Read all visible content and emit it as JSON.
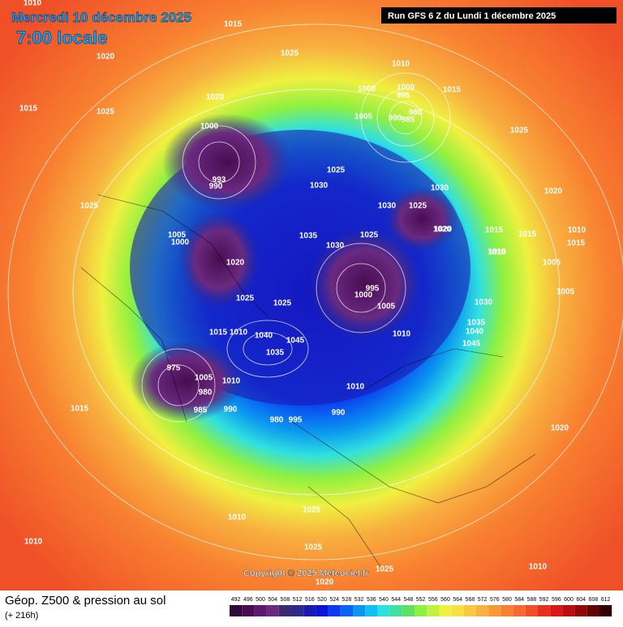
{
  "header": {
    "date": "Mercredi 10 décembre 2025",
    "time": "7:00 locale",
    "run": "Run GFS 6 Z du Lundi 1 décembre 2025"
  },
  "footer": {
    "title": "Géop. Z500 & pression au sol",
    "lead": "(+ 216h)",
    "copyright": "Copyright © 2025 Meteociel.fr"
  },
  "scale": {
    "levels": [
      492,
      496,
      500,
      504,
      508,
      512,
      516,
      520,
      524,
      528,
      532,
      536,
      540,
      544,
      548,
      552,
      556,
      560,
      564,
      568,
      572,
      576,
      580,
      584,
      588,
      592,
      596,
      600,
      604,
      608,
      612
    ],
    "colors": [
      "#2d0a3a",
      "#4a0b52",
      "#5f1870",
      "#6a2a80",
      "#3a2a70",
      "#2a2a8a",
      "#1a1ab0",
      "#0a14d8",
      "#0a3af0",
      "#0a64f0",
      "#0a96f0",
      "#10c0f0",
      "#30e0e0",
      "#40e0a0",
      "#60e060",
      "#90f040",
      "#c0f040",
      "#f0f040",
      "#f8e040",
      "#f8c840",
      "#f8b040",
      "#f89838",
      "#f88030",
      "#f86830",
      "#f05028",
      "#e83020",
      "#d81818",
      "#b81010",
      "#900808",
      "#600404",
      "#300000"
    ]
  },
  "isobars": [
    "1010",
    "1015",
    "1020",
    "1025",
    "1015",
    "1025",
    "1020",
    "1010",
    "1000",
    "1000",
    "995",
    "980",
    "990",
    "985",
    "1015",
    "1005",
    "1025",
    "1000",
    "993",
    "990",
    "1025",
    "1030",
    "1030",
    "1030",
    "1025",
    "1020",
    "1015",
    "1010",
    "1005",
    "1000",
    "1035",
    "1030",
    "1025",
    "1020",
    "995",
    "1000",
    "1005",
    "1025",
    "1010",
    "1040",
    "1045",
    "1035",
    "1025",
    "1015",
    "1010",
    "1005",
    "980",
    "985",
    "975",
    "990",
    "980",
    "995",
    "990",
    "1010",
    "1010",
    "1020",
    "1020",
    "1015",
    "1010",
    "1005",
    "1010",
    "1015",
    "1025",
    "1030",
    "1035",
    "1040",
    "1045",
    "1025",
    "1025",
    "1025",
    "1020",
    "1015",
    "1010",
    "1010",
    "1010",
    "1020",
    "1005"
  ]
}
